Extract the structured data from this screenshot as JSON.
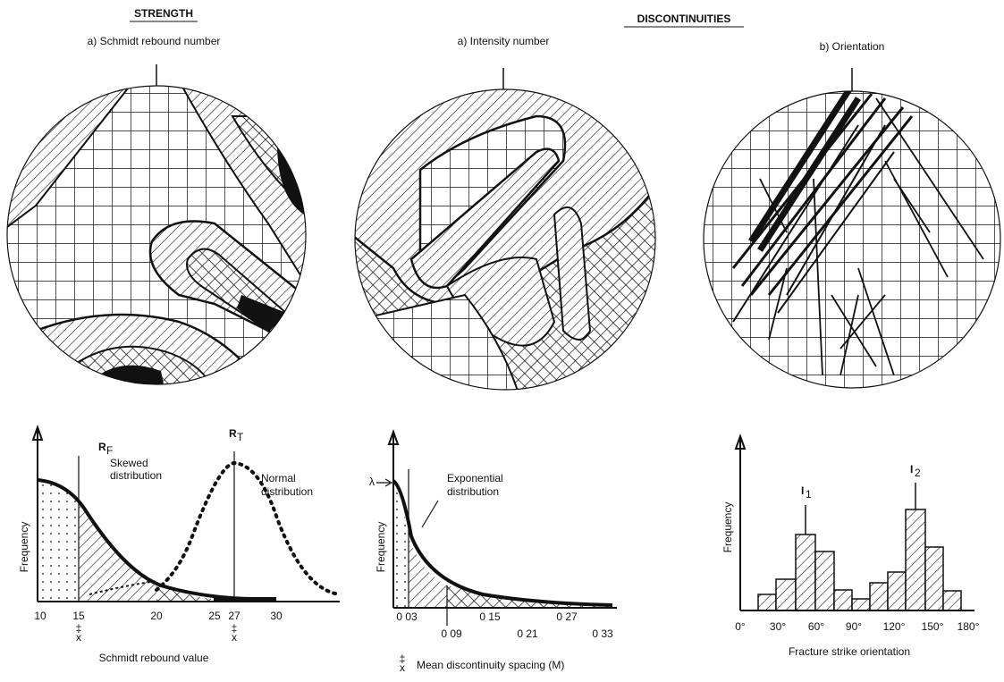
{
  "headings": {
    "strength": "STRENGTH",
    "discontinuities": "DISCONTINUITIES"
  },
  "panels": [
    {
      "title": "a) Schmidt rebound number"
    },
    {
      "title": "a) Intensity number"
    },
    {
      "title": "b) Orientation"
    }
  ],
  "charts": [
    {
      "y_label": "Frequency",
      "x_label": "Schmidt rebound value",
      "x_ticks": [
        "10",
        "15",
        "20",
        "25",
        "27",
        "30"
      ],
      "mean_markers": [
        "‡",
        "x",
        "‡",
        "x"
      ],
      "rf": {
        "text": "R",
        "sub": "F"
      },
      "rt": {
        "text": "R",
        "sub": "T"
      },
      "skewed": [
        "Skewed",
        "distribution"
      ],
      "normal": [
        "Normal",
        "distribution"
      ]
    },
    {
      "y_label": "Frequency",
      "x_label": "Mean discontinuity spacing (M)",
      "x_ticks": [
        "0 03",
        "0 09",
        "0 15",
        "0 21",
        "0 27",
        "0 33"
      ],
      "mean_markers": [
        "‡",
        "x"
      ],
      "lambda": "λ",
      "exponential": [
        "Exponential",
        "distribution"
      ]
    },
    {
      "y_label": "Frequency",
      "x_label": "Fracture strike orientation",
      "x_ticks": [
        "0°",
        "30°",
        "60°",
        "90°",
        "120°",
        "150°",
        "180°"
      ],
      "i1": {
        "text": "I",
        "sub": "1"
      },
      "i2": {
        "text": "I",
        "sub": "2"
      }
    }
  ]
}
